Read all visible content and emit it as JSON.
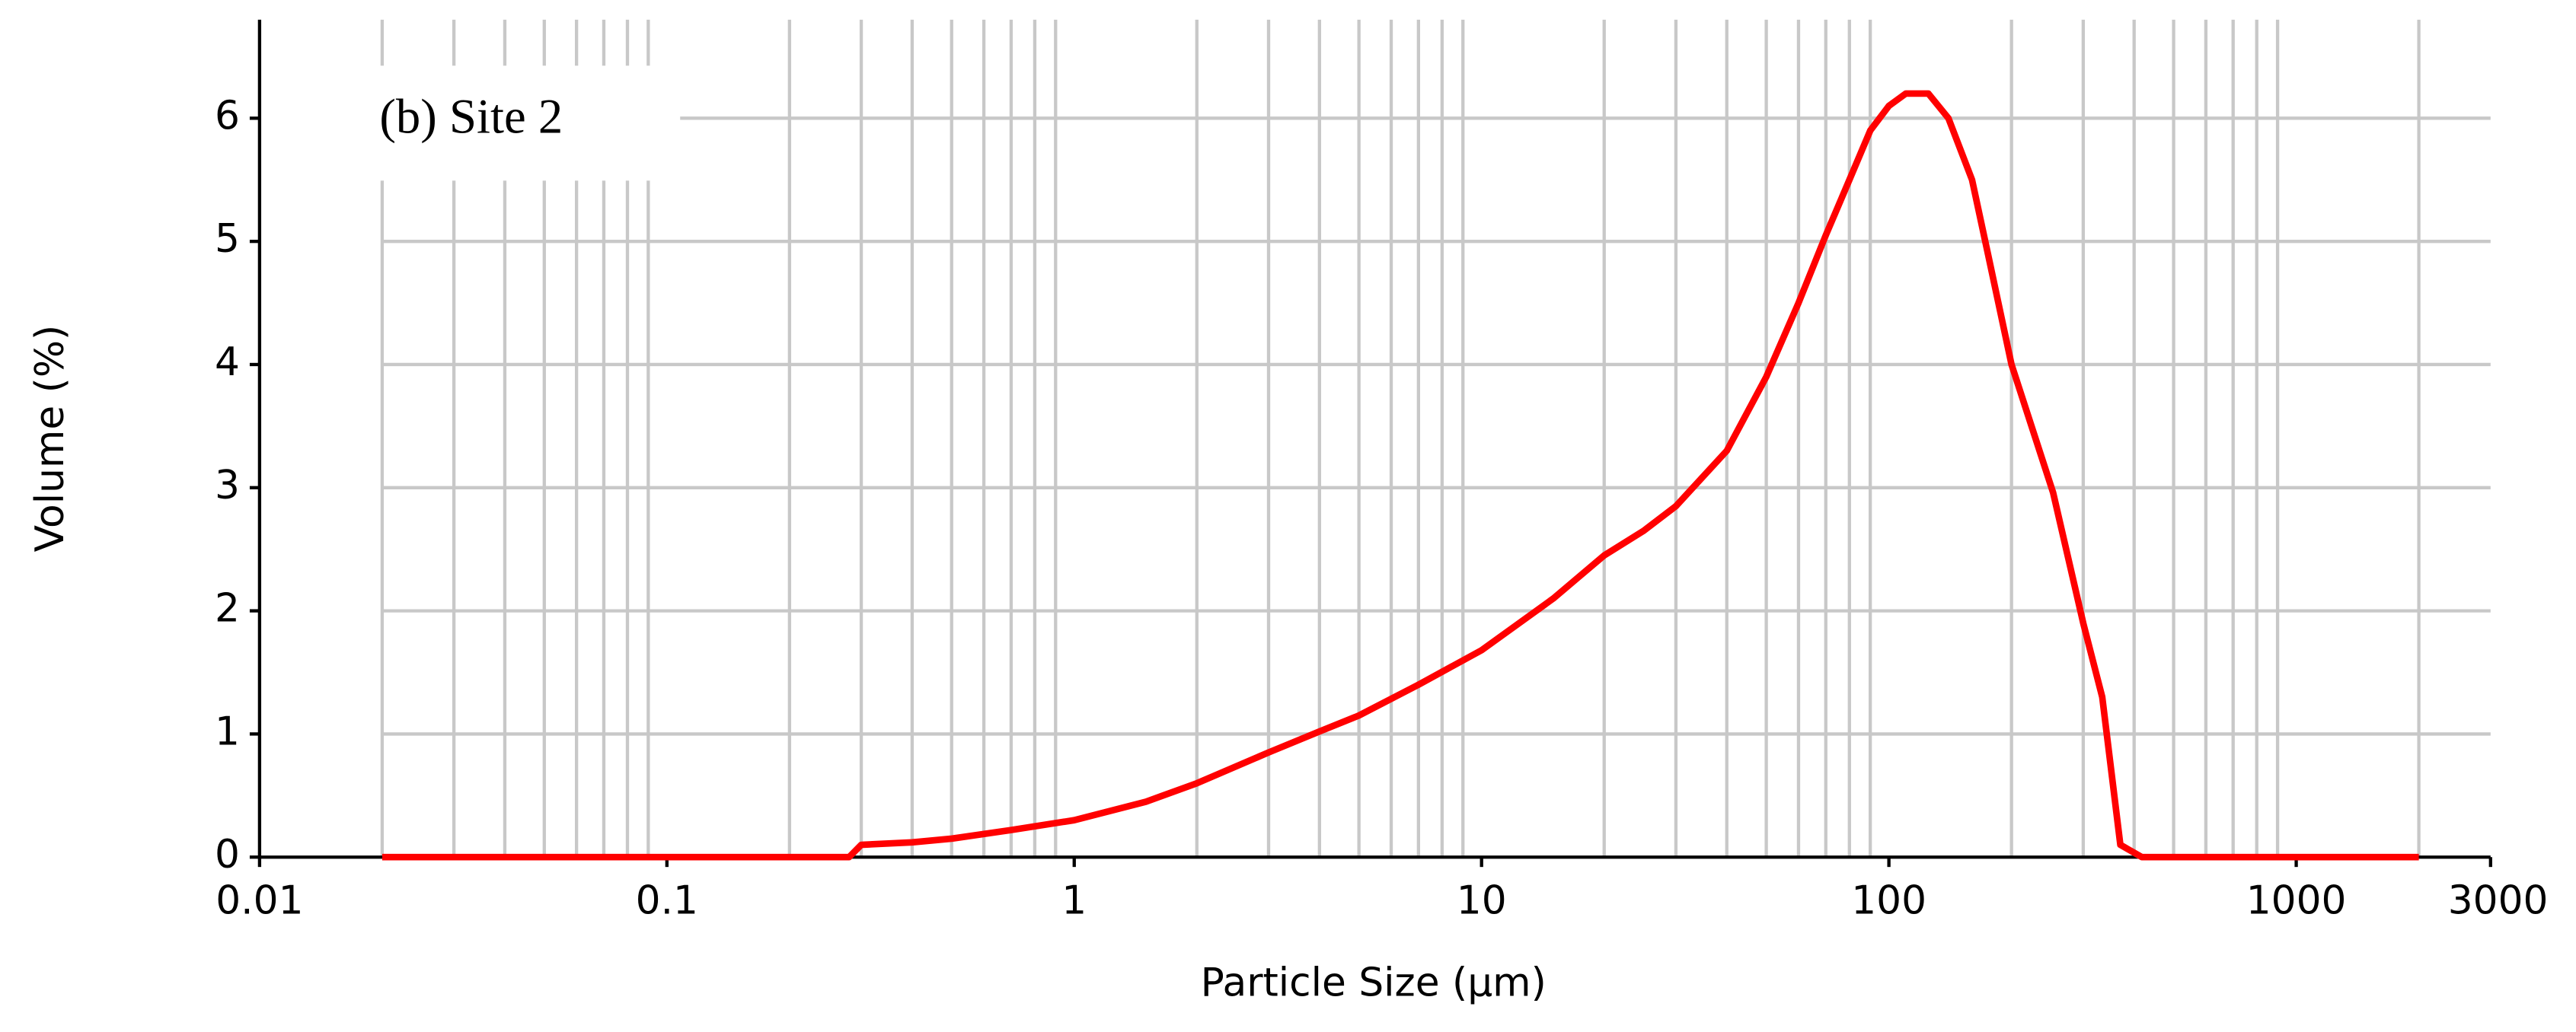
{
  "chart_data": {
    "type": "line",
    "title": "(b) Site 2",
    "x_label": "Particle Size (µm)",
    "y_label": "Volume (%)",
    "x_scale": "log",
    "grid": true,
    "xlim": [
      0.01,
      3000
    ],
    "xticks": [
      0.01,
      0.1,
      1,
      10,
      100,
      1000,
      3000
    ],
    "x_minor_gridlines": [
      0.02,
      0.03,
      0.04,
      0.05,
      0.06,
      0.07,
      0.08,
      0.09,
      0.2,
      0.3,
      0.4,
      0.5,
      0.6,
      0.7,
      0.8,
      0.9,
      2,
      3,
      4,
      5,
      6,
      7,
      8,
      9,
      20,
      30,
      40,
      50,
      60,
      70,
      80,
      90,
      200,
      300,
      400,
      500,
      600,
      700,
      800,
      900,
      2000
    ],
    "ylim": [
      0,
      6.8
    ],
    "yticks": [
      0,
      1,
      2,
      3,
      4,
      5,
      6
    ],
    "x": [
      0.02,
      0.28,
      0.3,
      0.4,
      0.5,
      0.7,
      1,
      1.5,
      2,
      3,
      4,
      5,
      7,
      10,
      15,
      20,
      25,
      30,
      40,
      50,
      60,
      70,
      80,
      90,
      100,
      110,
      125,
      140,
      160,
      175,
      200,
      253,
      300,
      334,
      370,
      418,
      2000
    ],
    "series": [
      {
        "name": "Site 2",
        "color": "#ff0000",
        "values": [
          0,
          0,
          0.1,
          0.12,
          0.15,
          0.22,
          0.3,
          0.45,
          0.6,
          0.85,
          1.02,
          1.15,
          1.4,
          1.68,
          2.1,
          2.45,
          2.65,
          2.85,
          3.3,
          3.9,
          4.5,
          5.05,
          5.5,
          5.9,
          6.1,
          6.2,
          6.2,
          6.0,
          5.5,
          4.9,
          4.0,
          2.96,
          1.9,
          1.3,
          0.1,
          0,
          0
        ]
      }
    ]
  }
}
